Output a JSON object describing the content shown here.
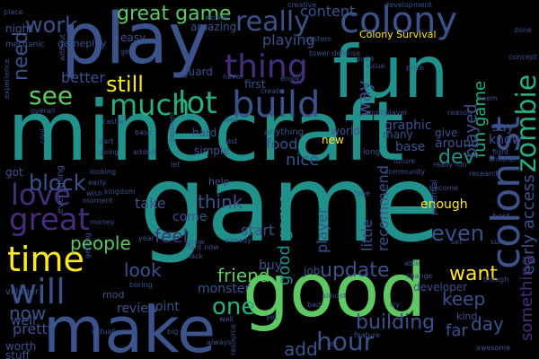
{
  "background": "#000000",
  "palette": {
    "deep_purple": "#440154",
    "purple": "#472d7b",
    "indigo": "#3b528b",
    "slate_blue": "#2c728e",
    "teal": "#21918c",
    "sea_green": "#28ae80",
    "green": "#5ec962",
    "lime": "#addc30",
    "yellow": "#fde725"
  },
  "words": [
    {
      "text": "game",
      "color": "#21918c"
    },
    {
      "text": "minecraft",
      "color": "#21918c"
    },
    {
      "text": "good",
      "color": "#5ec962"
    },
    {
      "text": "make",
      "color": "#3b528b"
    },
    {
      "text": "fun",
      "color": "#21918c"
    },
    {
      "text": "play",
      "color": "#3b528b"
    },
    {
      "text": "colony",
      "color": "#3b528b"
    },
    {
      "text": "build",
      "color": "#3b528b"
    },
    {
      "text": "much",
      "color": "#28ae80"
    },
    {
      "text": "lot",
      "color": "#28ae80"
    },
    {
      "text": "thing",
      "color": "#472d7b"
    },
    {
      "text": "really",
      "color": "#3b528b"
    },
    {
      "text": "colonist",
      "color": "#3b528b"
    },
    {
      "text": "zombie",
      "color": "#28ae80"
    },
    {
      "text": "time",
      "color": "#fde725"
    },
    {
      "text": "love",
      "color": "#472d7b"
    },
    {
      "text": "great",
      "color": "#472d7b"
    },
    {
      "text": "will",
      "color": "#3b528b"
    },
    {
      "text": "one",
      "color": "#28ae80"
    },
    {
      "text": "hour",
      "color": "#3b528b"
    },
    {
      "text": "update",
      "color": "#3b528b"
    },
    {
      "text": "block",
      "color": "#3b528b"
    },
    {
      "text": "see",
      "color": "#5ec962"
    },
    {
      "text": "still",
      "color": "#fde725"
    },
    {
      "text": "work",
      "color": "#3b528b"
    },
    {
      "text": "great game",
      "color": "#5ec962"
    },
    {
      "text": "need",
      "color": "#3b528b"
    },
    {
      "text": "people",
      "color": "#5ec962"
    },
    {
      "text": "think",
      "color": "#3b528b"
    },
    {
      "text": "friend",
      "color": "#5ec962"
    },
    {
      "text": "now",
      "color": "#3b528b"
    },
    {
      "text": "want",
      "color": "#fde725"
    },
    {
      "text": "building",
      "color": "#3b528b"
    },
    {
      "text": "good game",
      "color": "#21918c"
    },
    {
      "text": "fun game",
      "color": "#28ae80"
    },
    {
      "text": "early access",
      "color": "#3b528b"
    },
    {
      "text": "something",
      "color": "#472d7b"
    },
    {
      "text": "dev",
      "color": "#21918c"
    },
    {
      "text": "even",
      "color": "#3b528b"
    },
    {
      "text": "way",
      "color": "#3b528b"
    },
    {
      "text": "played",
      "color": "#3b528b"
    },
    {
      "text": "feel",
      "color": "#472d7b"
    },
    {
      "text": "look",
      "color": "#3b528b"
    },
    {
      "text": "day",
      "color": "#3b528b"
    },
    {
      "text": "keep",
      "color": "#3b528b"
    },
    {
      "text": "add",
      "color": "#3b528b"
    },
    {
      "text": "recommend",
      "color": "#3b528b"
    },
    {
      "text": "little",
      "color": "#3b528b"
    },
    {
      "text": "player",
      "color": "#3b528b"
    },
    {
      "text": "playing",
      "color": "#3b528b"
    },
    {
      "text": "content",
      "color": "#3b528b"
    },
    {
      "text": "better",
      "color": "#3b528b"
    },
    {
      "text": "nice",
      "color": "#3b528b"
    },
    {
      "text": "food",
      "color": "#3b528b"
    },
    {
      "text": "Colony Survival",
      "color": "#fde725"
    },
    {
      "text": "take",
      "color": "#3b528b"
    },
    {
      "text": "come",
      "color": "#3b528b"
    },
    {
      "text": "start",
      "color": "#3b528b"
    },
    {
      "text": "graphic",
      "color": "#3b528b"
    },
    {
      "text": "far",
      "color": "#3b528b"
    },
    {
      "text": "enough",
      "color": "#fde725"
    },
    {
      "text": "around",
      "color": "#3b528b"
    },
    {
      "text": "pretty",
      "color": "#3b528b"
    },
    {
      "text": "well",
      "color": "#3b528b"
    },
    {
      "text": "review",
      "color": "#3b528b"
    },
    {
      "text": "point",
      "color": "#3b528b"
    },
    {
      "text": "buy",
      "color": "#3b528b"
    },
    {
      "text": "monster",
      "color": "#3b528b"
    },
    {
      "text": "worth",
      "color": "#3b528b"
    },
    {
      "text": "stuff",
      "color": "#3b528b"
    },
    {
      "text": "job",
      "color": "#3b528b"
    },
    {
      "text": "developer",
      "color": "#3b528b"
    },
    {
      "text": "base",
      "color": "#3b528b"
    },
    {
      "text": "many",
      "color": "#3b528b"
    },
    {
      "text": "give",
      "color": "#3b528b"
    },
    {
      "text": "say",
      "color": "#3b528b"
    },
    {
      "text": "know",
      "color": "#3b528b"
    },
    {
      "text": "new",
      "color": "#fde725"
    },
    {
      "text": "amazing",
      "color": "#3b528b"
    },
    {
      "text": "first",
      "color": "#3b528b"
    },
    {
      "text": "easy",
      "color": "#3b528b"
    },
    {
      "text": "guard",
      "color": "#3b528b"
    },
    {
      "text": "gameplay",
      "color": "#3b528b"
    },
    {
      "text": "night",
      "color": "#3b528b"
    },
    {
      "text": "simple",
      "color": "#3b528b"
    },
    {
      "text": "hard",
      "color": "#3b528b"
    },
    {
      "text": "anything",
      "color": "#3b528b"
    },
    {
      "text": "got",
      "color": "#3b528b"
    },
    {
      "text": "world",
      "color": "#3b528b"
    },
    {
      "text": "kind",
      "color": "#3b528b"
    },
    {
      "text": "help",
      "color": "#3b528b"
    },
    {
      "text": "mod",
      "color": "#3b528b"
    },
    {
      "text": "villager",
      "color": "#3b528b"
    },
    {
      "text": "mechanic",
      "color": "#3b528b"
    },
    {
      "text": "tower defense",
      "color": "#3b528b"
    },
    {
      "text": "development",
      "color": "#3b528b"
    },
    {
      "text": "everything",
      "color": "#3b528b"
    },
    {
      "text": "long",
      "color": "#3b528b"
    },
    {
      "text": "community",
      "color": "#3b528b"
    },
    {
      "text": "potential",
      "color": "#3b528b"
    },
    {
      "text": "multiplayer",
      "color": "#3b528b"
    },
    {
      "text": "really fun",
      "color": "#3b528b"
    },
    {
      "text": "research",
      "color": "#3b528b"
    },
    {
      "text": "fight",
      "color": "#3b528b"
    },
    {
      "text": "best",
      "color": "#3b528b"
    },
    {
      "text": "right now",
      "color": "#3b528b"
    },
    {
      "text": "always",
      "color": "#3b528b"
    },
    {
      "text": "awesome",
      "color": "#3b528b"
    },
    {
      "text": "resource",
      "color": "#3b528b"
    },
    {
      "text": "wall",
      "color": "#3b528b"
    },
    {
      "text": "bad",
      "color": "#3b528b"
    },
    {
      "text": "almost",
      "color": "#3b528b"
    },
    {
      "text": "yet",
      "color": "#3b528b"
    },
    {
      "text": "year",
      "color": "#3b528b"
    },
    {
      "text": "grow",
      "color": "#3b528b"
    },
    {
      "text": "lack",
      "color": "#3b528b"
    },
    {
      "text": "already",
      "color": "#3b528b"
    },
    {
      "text": "able",
      "color": "#3b528b"
    },
    {
      "text": "change",
      "color": "#3b528b"
    },
    {
      "text": "set",
      "color": "#3b528b"
    },
    {
      "text": "sure",
      "color": "#3b528b"
    },
    {
      "text": "though",
      "color": "#3b528b"
    },
    {
      "text": "kingdom",
      "color": "#3b528b"
    },
    {
      "text": "castle",
      "color": "#3b528b"
    },
    {
      "text": "reason",
      "color": "#3b528b"
    },
    {
      "text": "quite",
      "color": "#3b528b"
    },
    {
      "text": "enjoy",
      "color": "#3b528b"
    },
    {
      "text": "create",
      "color": "#3b528b"
    },
    {
      "text": "system",
      "color": "#3b528b"
    },
    {
      "text": "worker",
      "color": "#3b528b"
    },
    {
      "text": "creative",
      "color": "#3b528b"
    },
    {
      "text": "place",
      "color": "#3b528b"
    },
    {
      "text": "experience",
      "color": "#3b528b"
    },
    {
      "text": "without",
      "color": "#3b528b"
    },
    {
      "text": "gets",
      "color": "#3b528b"
    },
    {
      "text": "overall",
      "color": "#3b528b"
    },
    {
      "text": "cool",
      "color": "#3b528b"
    },
    {
      "text": "basic",
      "color": "#3b528b"
    },
    {
      "text": "bed",
      "color": "#3b528b"
    },
    {
      "text": "problem",
      "color": "#3b528b"
    },
    {
      "text": "added",
      "color": "#3b528b"
    },
    {
      "text": "going",
      "color": "#3b528b"
    },
    {
      "text": "let",
      "color": "#3b528b"
    },
    {
      "text": "looking",
      "color": "#3b528b"
    },
    {
      "text": "early",
      "color": "#3b528b"
    },
    {
      "text": "wish",
      "color": "#3b528b"
    },
    {
      "text": "moment",
      "color": "#3b528b"
    },
    {
      "text": "money",
      "color": "#3b528b"
    },
    {
      "text": "getting",
      "color": "#3b528b"
    },
    {
      "text": "boring",
      "color": "#3b528b"
    },
    {
      "text": "actually",
      "color": "#3b528b"
    },
    {
      "text": "big",
      "color": "#3b528b"
    },
    {
      "text": "etc",
      "color": "#3b528b"
    },
    {
      "text": "feature",
      "color": "#3b528b"
    },
    {
      "text": "try",
      "color": "#3b528b"
    },
    {
      "text": "seem",
      "color": "#3b528b"
    },
    {
      "text": "done",
      "color": "#3b528b"
    },
    {
      "text": "price",
      "color": "#3b528b"
    },
    {
      "text": "become",
      "color": "#3b528b"
    },
    {
      "text": "another",
      "color": "#3b528b"
    },
    {
      "text": "future",
      "color": "#3b528b"
    },
    {
      "text": "type",
      "color": "#3b528b"
    },
    {
      "text": "issue",
      "color": "#3b528b"
    },
    {
      "text": "part",
      "color": "#3b528b"
    },
    {
      "text": "last",
      "color": "#3b528b"
    },
    {
      "text": "never",
      "color": "#3b528b"
    },
    {
      "text": "concept",
      "color": "#3b528b"
    }
  ]
}
